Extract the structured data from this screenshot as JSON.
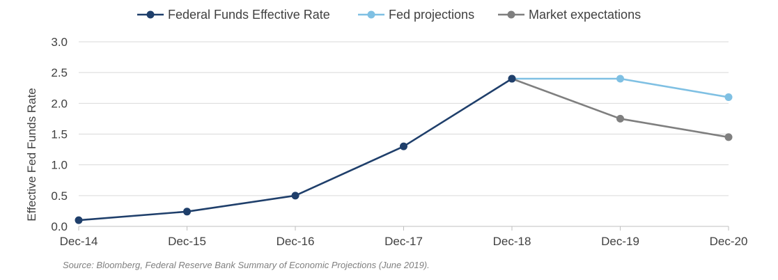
{
  "chart_data": {
    "type": "line",
    "title": "",
    "xlabel": "",
    "ylabel": "Effective Fed Funds Rate",
    "ylim": [
      0,
      3.0
    ],
    "yticks": [
      "0.0",
      "0.5",
      "1.0",
      "1.5",
      "2.0",
      "2.5",
      "3.0"
    ],
    "categories": [
      "Dec-14",
      "Dec-15",
      "Dec-16",
      "Dec-17",
      "Dec-18",
      "Dec-19",
      "Dec-20"
    ],
    "grid": true,
    "legend_position": "top",
    "series": [
      {
        "name": "Federal Funds Effective Rate",
        "color": "#1f3f6b",
        "x": [
          "Dec-14",
          "Dec-15",
          "Dec-16",
          "Dec-17",
          "Dec-18"
        ],
        "values": [
          0.1,
          0.24,
          0.5,
          1.3,
          2.4
        ]
      },
      {
        "name": "Fed projections",
        "color": "#7fc0e3",
        "x": [
          "Dec-18",
          "Dec-19",
          "Dec-20"
        ],
        "values": [
          2.4,
          2.4,
          2.1
        ]
      },
      {
        "name": "Market expectations",
        "color": "#7f7f7f",
        "x": [
          "Dec-18",
          "Dec-19",
          "Dec-20"
        ],
        "values": [
          2.4,
          1.75,
          1.45
        ]
      }
    ],
    "source": "Source: Bloomberg, Federal Reserve Bank Summary of Economic Projections (June 2019)."
  }
}
